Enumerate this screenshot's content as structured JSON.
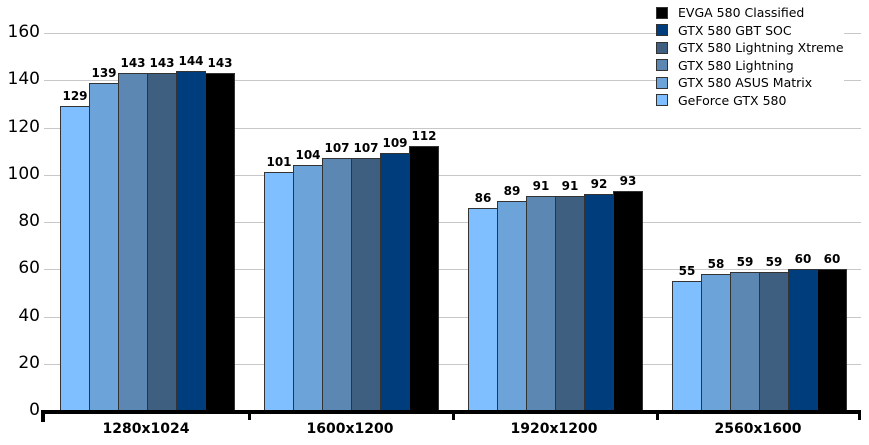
{
  "chart_data": {
    "type": "bar",
    "title": "",
    "xlabel": "",
    "ylabel": "",
    "ylim": [
      0,
      160
    ],
    "yticks": [
      0,
      20,
      40,
      60,
      80,
      100,
      120,
      140,
      160
    ],
    "grid": true,
    "legend_position": "top-right",
    "categories": [
      "1280x1024",
      "1600x1200",
      "1920x1200",
      "2560x1600"
    ],
    "series": [
      {
        "name": "GeForce GTX 580",
        "color": "#7fbfff",
        "values": [
          129,
          101,
          86,
          55
        ]
      },
      {
        "name": "GTX 580 ASUS Matrix",
        "color": "#6ca3d9",
        "values": [
          139,
          104,
          89,
          58
        ]
      },
      {
        "name": "GTX 580 Lightning",
        "color": "#5b87b2",
        "values": [
          143,
          107,
          91,
          59
        ]
      },
      {
        "name": "GTX 580 Lightning Xtreme",
        "color": "#3f5f80",
        "values": [
          143,
          107,
          91,
          59
        ]
      },
      {
        "name": "GTX 580 GBT SOC",
        "color": "#003d7d",
        "values": [
          144,
          109,
          92,
          60
        ]
      },
      {
        "name": "EVGA 580 Classified",
        "color": "#000000",
        "values": [
          143,
          112,
          93,
          60
        ]
      }
    ],
    "legend_order": [
      "EVGA 580 Classified",
      "GTX 580 GBT SOC",
      "GTX 580 Lightning Xtreme",
      "GTX 580 Lightning",
      "GTX 580 ASUS Matrix",
      "GeForce GTX 580"
    ]
  }
}
